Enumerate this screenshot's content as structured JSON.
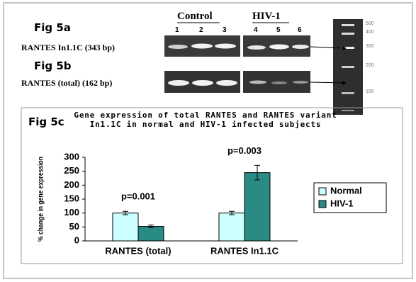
{
  "panels": {
    "fig5a": {
      "label": "Fig 5a",
      "gene": "RANTES In1.1C (343 bp)"
    },
    "fig5b": {
      "label": "Fig 5b",
      "gene": "RANTES (total)  (162 bp)"
    }
  },
  "gel_groups": [
    "Control",
    "HIV-1"
  ],
  "lanes": [
    "1",
    "2",
    "3",
    "4",
    "5",
    "6"
  ],
  "ladder_labels": [
    "500",
    "400",
    "300",
    "200",
    "100"
  ],
  "chart_data": {
    "type": "bar",
    "panel_label": "Fig 5c",
    "title": "Gene expression of total RANTES and RANTES variant In1.1C in normal and HIV-1 infected subjects",
    "y_label": "% change in gene expression",
    "categories": [
      "RANTES (total)",
      "RANTES In1.1C"
    ],
    "series": [
      {
        "name": "Normal",
        "color": "#ccffff",
        "values": [
          100,
          100
        ],
        "errors": [
          6,
          6
        ]
      },
      {
        "name": "HIV-1",
        "color": "#2a8a84",
        "values": [
          52,
          245
        ],
        "errors": [
          5,
          26
        ]
      }
    ],
    "annotations": [
      "p=0.001",
      "p=0.003"
    ],
    "ylim": [
      0,
      300
    ],
    "yticks": [
      0,
      50,
      100,
      150,
      200,
      250,
      300
    ],
    "grid": false,
    "legend": "right"
  }
}
